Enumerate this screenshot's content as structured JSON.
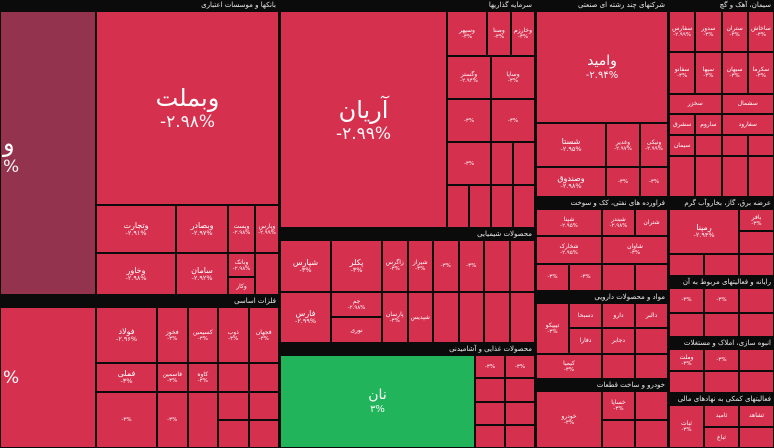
{
  "sectors": {
    "banks": "بانکها و موسسات اعتباری",
    "investment": "سرمایه گذاریها",
    "multi": "شرکتهای چند رشته ای صنعتی",
    "cement": "سیمان، آهک و گچ",
    "metals": "فلزات اساسی",
    "chemicals": "محصولات شیمیایی",
    "food": "محصولات غذایی و آشامیدنی",
    "petroleum": "فراورده های نفتی، کک و سوخت",
    "electricity": "عرضه برق، گاز، بخاروآب گرم",
    "pharma": "مواد و محصولات دارویی",
    "auto": "خودرو و ساخت قطعات",
    "realestate": "انبوه سازی، املاک و مستغلات",
    "transport": "رایانه و فعالیتهای مربوط به آن",
    "support": "فعالیتهای کمکی به نهادهای مالی"
  },
  "tiles": {
    "left_big": {
      "name": "و",
      "pct": "%"
    },
    "vbmelat": {
      "name": "وبملت",
      "pct": "-۲.۹۸%"
    },
    "vtejarat": {
      "name": "وتجارت",
      "pct": "-۲.۹۱%"
    },
    "vbsader": {
      "name": "وبصادر",
      "pct": "-۲.۹۷%"
    },
    "vpost": {
      "name": "وپست",
      "pct": "-۲.۹۸%"
    },
    "vkhavar": {
      "name": "وخاور",
      "pct": "-۲.۹۸%"
    },
    "vparsian": {
      "name": "وپارس",
      "pct": "-۲.۹۹%"
    },
    "saman": {
      "name": "سامان",
      "pct": "-۲.۹۲%"
    },
    "vkar": {
      "name": "وکار",
      "pct": "-۳%"
    },
    "vbank": {
      "name": "وبانک",
      "pct": "-۲.۹۸%"
    },
    "aryan": {
      "name": "آریان",
      "pct": "-۲.۹۹%"
    },
    "vsepehr": {
      "name": "وسپهر",
      "pct": "-۳%"
    },
    "vsina": {
      "name": "وصنا",
      "pct": "-۳%"
    },
    "vkharazm": {
      "name": "وخارزم",
      "pct": "-۳%"
    },
    "vamid": {
      "name": "وامید",
      "pct": "-۲.۹۴%"
    },
    "shasta": {
      "name": "شستا",
      "pct": "-۲.۹۵%"
    },
    "vghadir": {
      "name": "وغدیر",
      "pct": "-۲.۹۷%"
    },
    "vsandogh": {
      "name": "وصندوق",
      "pct": "-۲.۹۸%"
    },
    "vnik": {
      "name": "ونیکی",
      "pct": "-۲.۹۹%"
    },
    "vgostar": {
      "name": "وگستر",
      "pct": "-۲.۹۴%"
    },
    "vsapa": {
      "name": "وساپا",
      "pct": "-۳%"
    },
    "noon": {
      "name": "نان",
      "pct": "۳%"
    },
    "fmelli": {
      "name": "فملی",
      "pct": "-۳%"
    },
    "foolad": {
      "name": "فولاد",
      "pct": "-۲.۹۶%"
    },
    "fkhouz": {
      "name": "فخوز",
      "pct": "-۳%"
    },
    "ksimin": {
      "name": "کسیمین",
      "pct": "-۳%"
    },
    "fasmin": {
      "name": "فاسمین",
      "pct": "-۳%"
    },
    "zob": {
      "name": "ذوب",
      "pct": "-۳%"
    },
    "fjahan": {
      "name": "فجهان",
      "pct": "-۳%"
    },
    "kave": {
      "name": "کاوه",
      "pct": "-۳%"
    },
    "shapna": {
      "name": "شپنا",
      "pct": "-۲.۹۵%"
    },
    "shbandar": {
      "name": "شبندر",
      "pct": "-۲.۹۸%"
    },
    "shtran": {
      "name": "شتران",
      "pct": "-۳%"
    },
    "shpars": {
      "name": "شپارس",
      "pct": "-۳%"
    },
    "shiraz": {
      "name": "شیراز",
      "pct": "-۳%"
    },
    "shavan": {
      "name": "شاوان",
      "pct": "-۳%"
    },
    "shkharak": {
      "name": "شخارک",
      "pct": "-۲.۹۵%"
    },
    "pkhalij": {
      "name": "پکلر",
      "pct": "-۳%"
    },
    "zagros": {
      "name": "زاگرس",
      "pct": "-۳%"
    },
    "shpedar": {
      "name": "شپدیس",
      "pct": "-۳%"
    },
    "jam": {
      "name": "جم",
      "pct": "-۲.۹۸%"
    },
    "nouri": {
      "name": "نوری",
      "pct": "-۳%"
    },
    "parsan": {
      "name": "پارسان",
      "pct": "-۳%"
    },
    "tapiko": {
      "name": "تاپیکو",
      "pct": "-۳%"
    },
    "fars": {
      "name": "فارس",
      "pct": "-۲.۹۹%"
    },
    "khasapa": {
      "name": "خساپا",
      "pct": "-۳%"
    },
    "khodro": {
      "name": "خودرو",
      "pct": "-۳%"
    },
    "vsima": {
      "name": "وسپها",
      "pct": "-۳%"
    },
    "mapna": {
      "name": "رمپنا",
      "pct": "-۲.۹۴%"
    },
    "bafar": {
      "name": "بافر",
      "pct": "-۳%"
    },
    "sfars": {
      "name": "سفارس",
      "pct": "-۲.۹۹%"
    },
    "sdoroud": {
      "name": "سدور",
      "pct": "-۳%"
    },
    "stran": {
      "name": "ستران",
      "pct": "-۳%"
    },
    "sakhash": {
      "name": "ساخاش",
      "pct": "-۳%"
    },
    "sfanoud": {
      "name": "سفانو",
      "pct": "-۳%"
    },
    "ssepahan": {
      "name": "سپها",
      "pct": "-۳%"
    },
    "sbahan": {
      "name": "سبهان",
      "pct": "-۳%"
    },
    "sikerman": {
      "name": "سکرما",
      "pct": "-۳%"
    },
    "sikhazar": {
      "name": "سخزر",
      "pct": "-۳%"
    },
    "sshomal": {
      "name": "سشمال",
      "pct": "-۳%"
    },
    "sshargh": {
      "name": "سشرق",
      "pct": "-۳%"
    },
    "sfarood": {
      "name": "سفارود",
      "pct": "-۳%"
    },
    "sorud": {
      "name": "ساروم",
      "pct": "-۳%"
    },
    "shasb": {
      "name": "ثباغ",
      "pct": "-۳%"
    },
    "shahid": {
      "name": "ثشاهد",
      "pct": "-۳%"
    },
    "thamid": {
      "name": "ثامید",
      "pct": "-۳%"
    },
    "tipix": {
      "name": "تیپیکو",
      "pct": "-۳%"
    },
    "dsobhan": {
      "name": "دسبحا",
      "pct": "-۳%"
    },
    "darou": {
      "name": "دارو",
      "pct": "-۳%"
    },
    "dalbar": {
      "name": "دالبر",
      "pct": "-۳%"
    },
    "dfara": {
      "name": "دفارا",
      "pct": "-۳%"
    },
    "djaber": {
      "name": "دجابر",
      "pct": "-۳%"
    },
    "kimia": {
      "name": "کیمیا",
      "pct": "-۳%"
    },
    "vmaskan": {
      "name": "وملت",
      "pct": "-۳%"
    },
    "ssiman": {
      "name": "سیمان",
      "pct": "-۳%"
    },
    "sabet": {
      "name": "ثبات",
      "pct": "-۳%"
    },
    "small": {
      "name": "",
      "pct": "-۳%"
    }
  }
}
